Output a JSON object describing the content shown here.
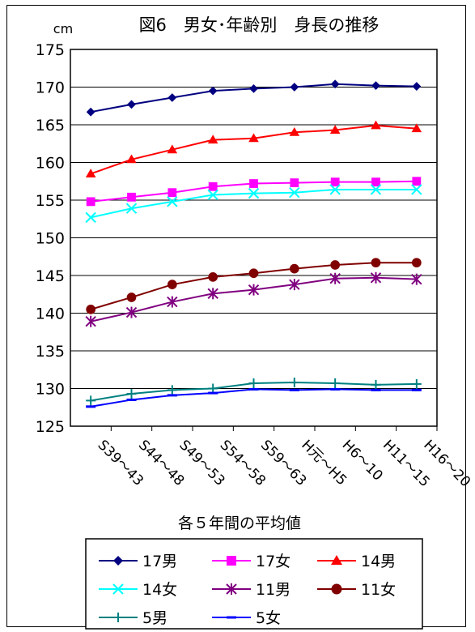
{
  "chart_data": {
    "type": "line",
    "title": "図6　男女･年齢別　身長の推移",
    "unit": "cm",
    "xlabel": "各５年間の平均値",
    "ylabel": "",
    "ylim": [
      125,
      175
    ],
    "yticks": [
      "175",
      "170",
      "165",
      "160",
      "155",
      "150",
      "145",
      "140",
      "135",
      "130",
      "125"
    ],
    "grid": true,
    "legend_position": "bottom",
    "categories": [
      "S39～43",
      "S44～48",
      "S49～53",
      "S54～58",
      "S59～63",
      "H元～H5",
      "H6～10",
      "H11～15",
      "H16～20"
    ],
    "series": [
      {
        "name": "17男",
        "color": "#000080",
        "marker": "diamond",
        "values": [
          166.7,
          167.7,
          168.6,
          169.5,
          169.8,
          170.0,
          170.4,
          170.2,
          170.1
        ]
      },
      {
        "name": "17女",
        "color": "#ff00ff",
        "marker": "square",
        "values": [
          154.8,
          155.4,
          156.0,
          156.8,
          157.2,
          157.3,
          157.4,
          157.4,
          157.5
        ]
      },
      {
        "name": "14男",
        "color": "#ff0000",
        "marker": "triangle",
        "values": [
          158.5,
          160.4,
          161.7,
          163.0,
          163.2,
          164.0,
          164.3,
          164.9,
          164.5
        ]
      },
      {
        "name": "14女",
        "color": "#00ffff",
        "marker": "x",
        "values": [
          152.7,
          153.9,
          154.8,
          155.7,
          155.9,
          156.0,
          156.4,
          156.4,
          156.4
        ]
      },
      {
        "name": "11男",
        "color": "#800080",
        "marker": "asterisk",
        "values": [
          138.9,
          140.1,
          141.5,
          142.6,
          143.1,
          143.8,
          144.6,
          144.7,
          144.5
        ]
      },
      {
        "name": "11女",
        "color": "#800000",
        "marker": "circle",
        "values": [
          140.5,
          142.1,
          143.8,
          144.8,
          145.3,
          145.9,
          146.4,
          146.7,
          146.7
        ]
      },
      {
        "name": "5男",
        "color": "#008080",
        "marker": "plus",
        "values": [
          128.4,
          129.3,
          129.8,
          130.0,
          130.7,
          130.8,
          130.7,
          130.5,
          130.6
        ]
      },
      {
        "name": "5女",
        "color": "#0000ff",
        "marker": "dash",
        "values": [
          127.6,
          128.5,
          129.1,
          129.4,
          129.9,
          129.8,
          129.9,
          129.8,
          129.8
        ]
      }
    ]
  }
}
